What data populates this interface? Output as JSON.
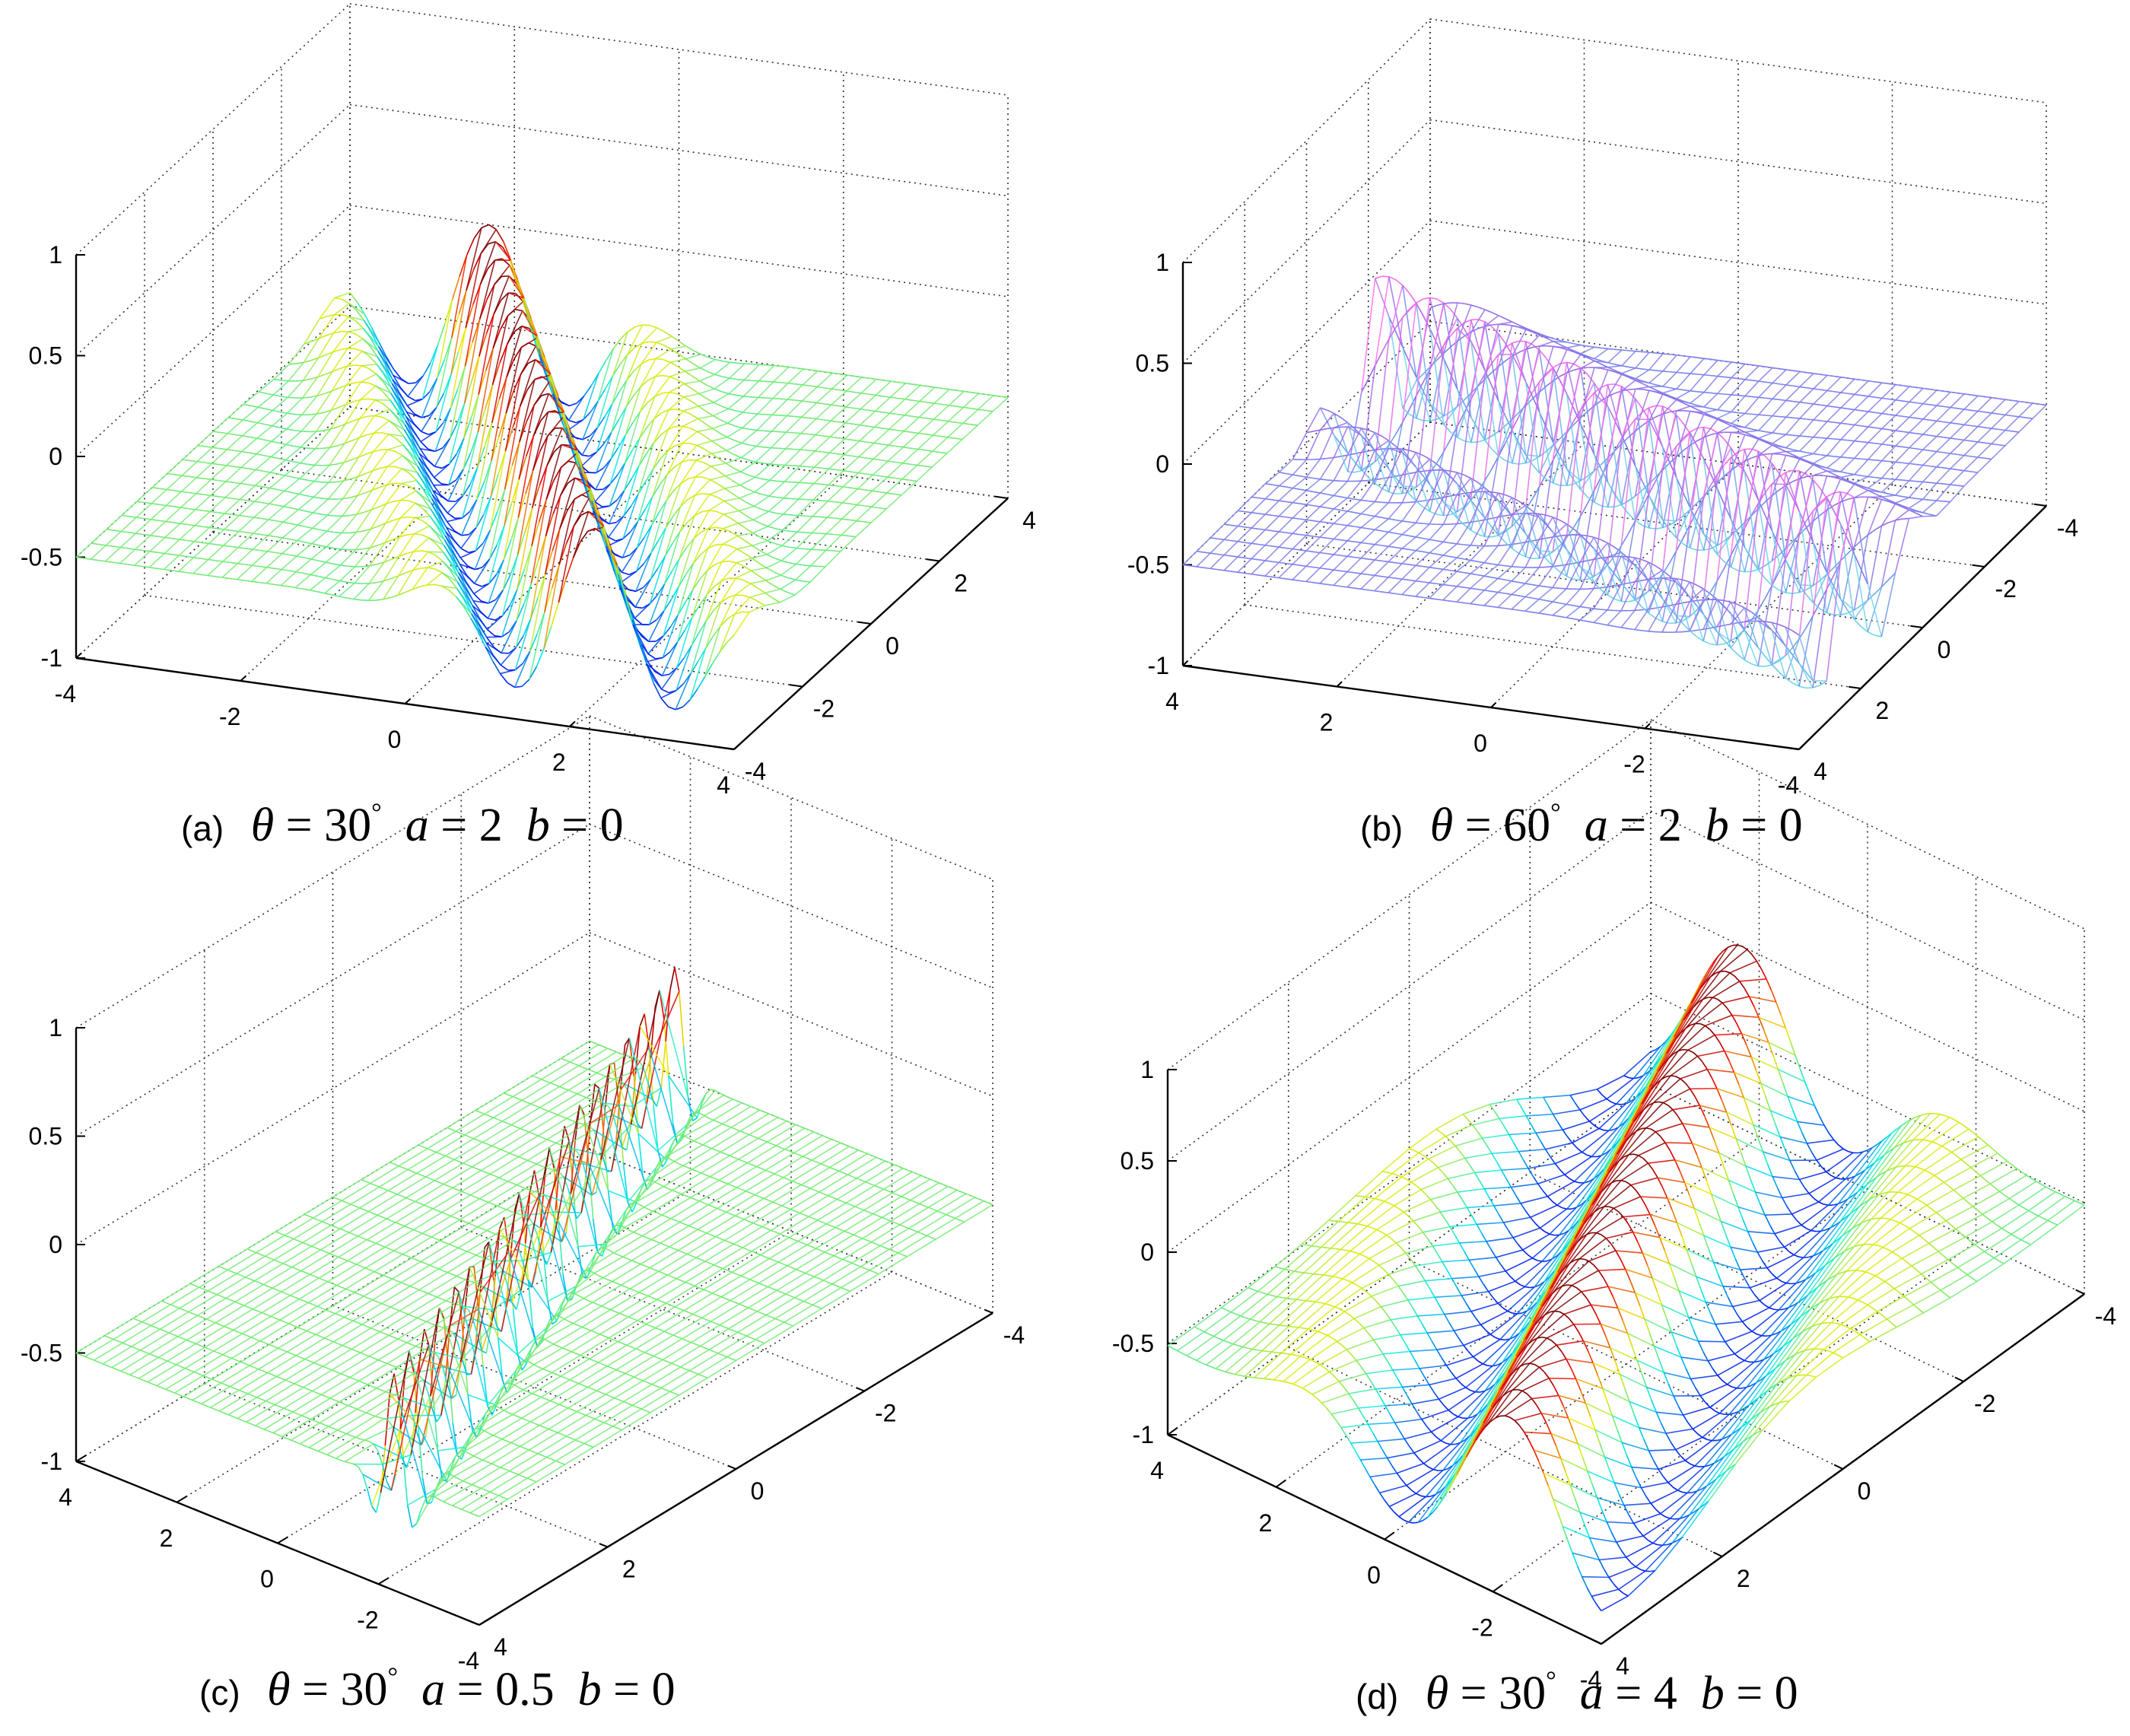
{
  "chart_data": [
    {
      "id": "a",
      "type": "surface",
      "caption": {
        "label": "(a)",
        "theta": "30",
        "a": "2",
        "b": "0"
      },
      "params": {
        "theta_deg": 30,
        "a": 2,
        "b": 0
      },
      "xlim": [
        -4,
        4
      ],
      "ylim": [
        -4,
        4
      ],
      "zlim": [
        -1,
        1
      ],
      "x_ticks": [
        "-4",
        "-2",
        "0",
        "2",
        "4"
      ],
      "y_ticks": [
        "-4",
        "-2",
        "0",
        "2",
        "4"
      ],
      "z_ticks": [
        "-1",
        "-0.5",
        "0",
        "0.5",
        "1"
      ],
      "colormap": "jet",
      "grid": true
    },
    {
      "id": "b",
      "type": "surface",
      "caption": {
        "label": "(b)",
        "theta": "60",
        "a": "2",
        "b": "0"
      },
      "params": {
        "theta_deg": 60,
        "a": 2,
        "b": 0
      },
      "xlim": [
        -4,
        4
      ],
      "ylim": [
        -4,
        4
      ],
      "zlim": [
        -1,
        1
      ],
      "x_ticks": [
        "4",
        "2",
        "0",
        "-2",
        "-4"
      ],
      "y_ticks": [
        "4",
        "2",
        "0",
        "-2",
        "-4"
      ],
      "z_ticks": [
        "-1",
        "-0.5",
        "0",
        "0.5",
        "1"
      ],
      "colormap": "cool",
      "grid": true
    },
    {
      "id": "c",
      "type": "surface",
      "caption": {
        "label": "(c)",
        "theta": "30",
        "a": "0.5",
        "b": "0"
      },
      "params": {
        "theta_deg": 30,
        "a": 0.5,
        "b": 0
      },
      "xlim": [
        -4,
        4
      ],
      "ylim": [
        -4,
        4
      ],
      "zlim": [
        -1,
        1
      ],
      "x_ticks": [
        "4",
        "2",
        "0",
        "-2",
        "-4"
      ],
      "y_ticks": [
        "4",
        "2",
        "0",
        "-2",
        "-4"
      ],
      "z_ticks": [
        "-1",
        "-0.5",
        "0",
        "0.5",
        "1"
      ],
      "colormap": "jet",
      "grid": true
    },
    {
      "id": "d",
      "type": "surface",
      "caption": {
        "label": "(d)",
        "theta": "30",
        "a": "4",
        "b": "0"
      },
      "params": {
        "theta_deg": 30,
        "a": 4,
        "b": 0
      },
      "xlim": [
        -4,
        4
      ],
      "ylim": [
        -4,
        4
      ],
      "zlim": [
        -1,
        1
      ],
      "x_ticks": [
        "4",
        "2",
        "0",
        "-2",
        "-4"
      ],
      "y_ticks": [
        "4",
        "2",
        "0",
        "-2",
        "-4"
      ],
      "z_ticks": [
        "-1",
        "-0.5",
        "0",
        "0.5",
        "1"
      ],
      "colormap": "jet",
      "grid": true
    }
  ]
}
